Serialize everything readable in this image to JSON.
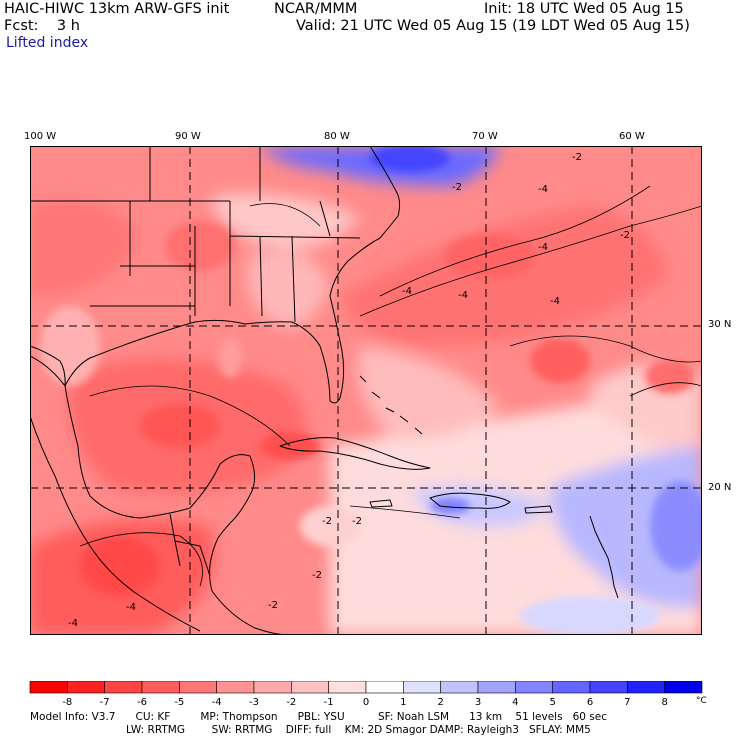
{
  "header": {
    "model_title": "HAIC-HIWC 13km ARW-GFS init",
    "org": "NCAR/MMM",
    "init": "Init: 18 UTC Wed 05 Aug 15",
    "fcst": "Fcst:    3 h",
    "valid": "Valid: 21 UTC Wed 05 Aug 15 (19 LDT Wed 05 Aug 15)",
    "field": "Lifted index"
  },
  "map": {
    "lon_labels": [
      "100 W",
      "90 W",
      "80 W",
      "70 W",
      "60 W"
    ],
    "lat_labels": [
      "30 N",
      "20 N"
    ],
    "contour_labels": [
      "-4",
      "-4",
      "-2",
      "-4",
      "-2",
      "-2",
      "-4",
      "-4",
      "-2",
      "-2",
      "-2",
      "-2",
      "-4",
      "-4"
    ]
  },
  "colorbar": {
    "ticks": [
      "-8",
      "-7",
      "-6",
      "-5",
      "-4",
      "-3",
      "-2",
      "-1",
      "0",
      "1",
      "2",
      "3",
      "4",
      "5",
      "6",
      "7",
      "8"
    ],
    "unit": "°C",
    "colors": [
      "#ff0000",
      "#ff2222",
      "#ff4444",
      "#ff5e5e",
      "#ff7878",
      "#ff9292",
      "#ffaaaa",
      "#ffc2c2",
      "#ffe0e0",
      "#ffffff",
      "#e0e0ff",
      "#c2c2ff",
      "#a4a4ff",
      "#8484ff",
      "#6464ff",
      "#4444ff",
      "#2222ff",
      "#0000ee"
    ]
  },
  "model_info": {
    "line1": "Model Info: V3.7      CU: KF         MP: Thompson      PBL: YSU          SF: Noah LSM      13 km    51 levels   60 sec",
    "line2": "LW: RRTMG        SW: RRTMG    DIFF: full    KM: 2D Smagor DAMP: Rayleigh3   SFLAY: MM5"
  }
}
